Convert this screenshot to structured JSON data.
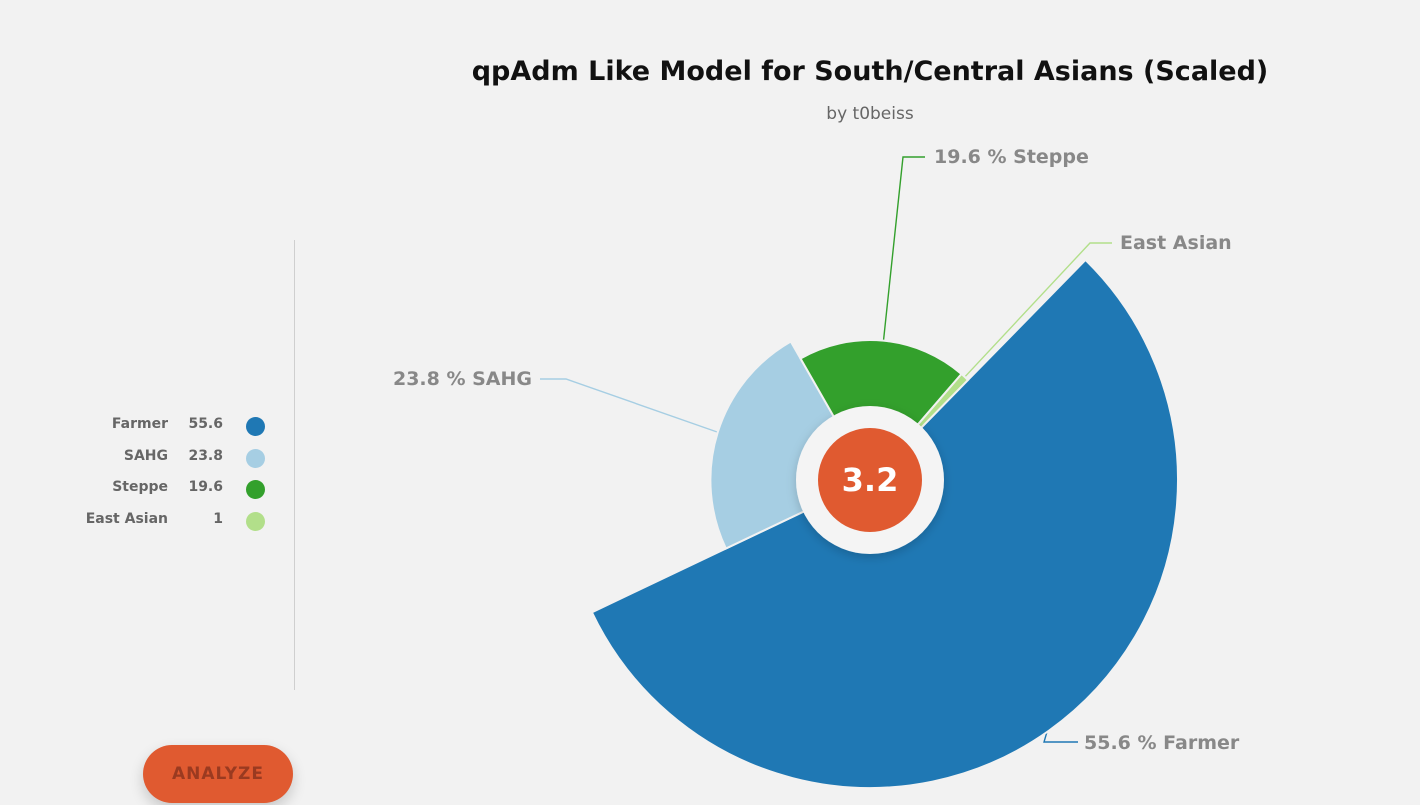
{
  "chart_data": {
    "type": "pie",
    "title": "qpAdm Like Model for South/Central Asians (Scaled)",
    "subtitle": "by t0beiss",
    "center_value": "3.2",
    "slices": [
      {
        "label": "Farmer",
        "value": 55.6,
        "legend_value": "55.6",
        "callout": "55.6 %  Farmer",
        "color": "#1f78b4"
      },
      {
        "label": "SAHG",
        "value": 23.8,
        "legend_value": "23.8",
        "callout": "23.8 %  SAHG",
        "color": "#a6cee3"
      },
      {
        "label": "Steppe",
        "value": 19.6,
        "legend_value": "19.6",
        "callout": "19.6 %  Steppe",
        "color": "#33a02c"
      },
      {
        "label": "East Asian",
        "value": 1,
        "legend_value": "1",
        "callout": "East Asian",
        "color": "#b2df8a"
      }
    ],
    "legend_position": "left"
  },
  "button": {
    "label": "ANALYZE"
  },
  "colors": {
    "accent": "#e05a30",
    "background": "#f2f2f2",
    "label": "#888888"
  }
}
